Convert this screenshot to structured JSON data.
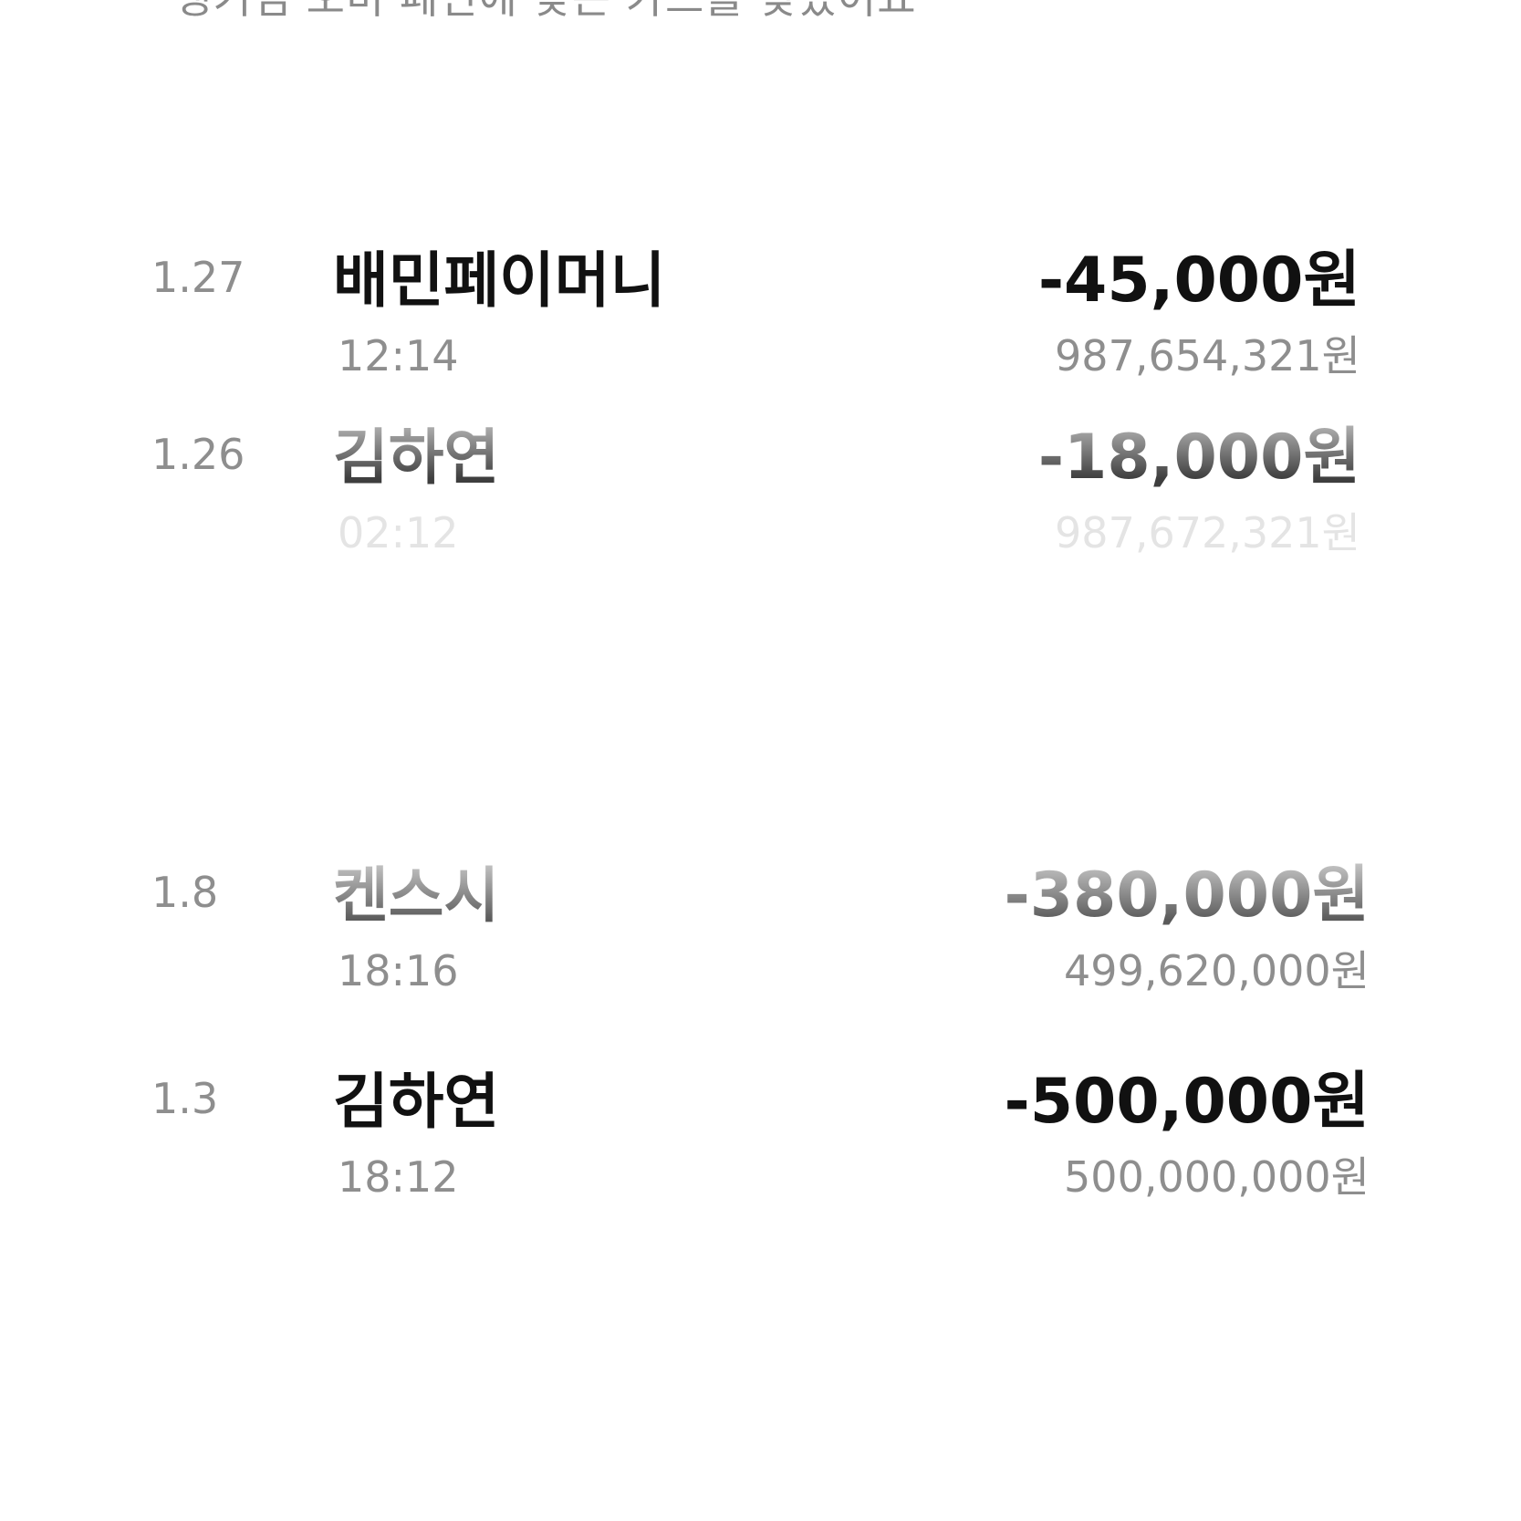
{
  "header": {
    "faded_text": "생기검 오미 페인에 맞는 카드를 찾았어요"
  },
  "transactions": [
    {
      "date": "1.27",
      "name": "배민페이머니",
      "amount": "-45,000원",
      "time": "12:14",
      "balance": "987,654,321원"
    },
    {
      "date": "1.26",
      "name": "김하연",
      "amount": "-18,000원",
      "time": "02:12",
      "balance": "987,672,321원"
    },
    {
      "date": "1.8",
      "name": "켄스시",
      "amount": "-380,000원",
      "time": "18:16",
      "balance": "499,620,000원"
    },
    {
      "date": "1.3",
      "name": "김하연",
      "amount": "-500,000원",
      "time": "18:12",
      "balance": "500,000,000원"
    }
  ]
}
